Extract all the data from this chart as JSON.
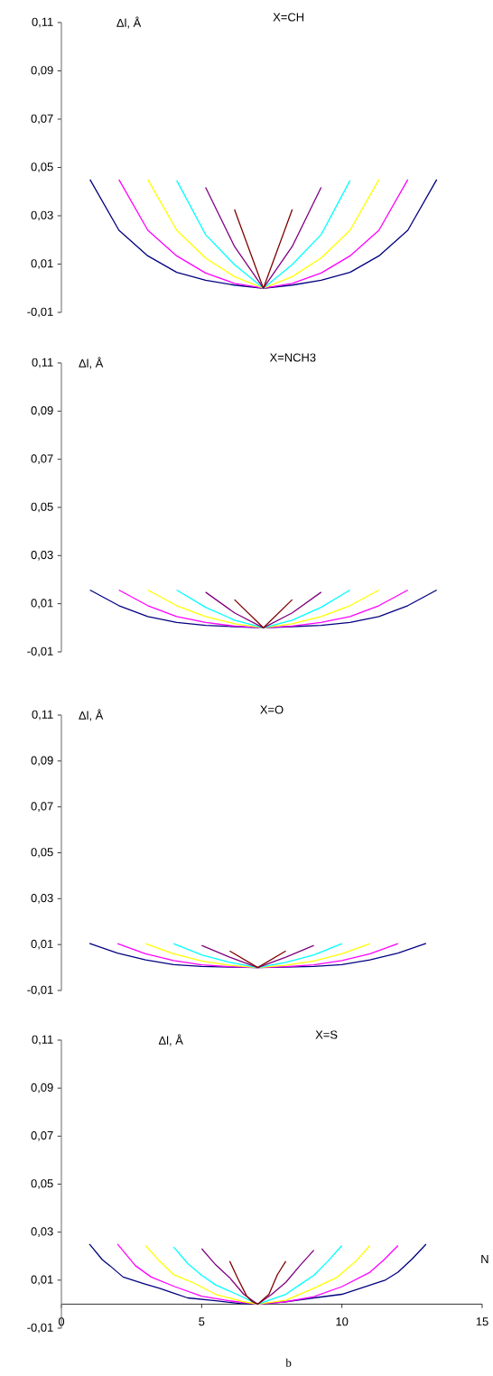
{
  "chart_data": [
    {
      "type": "line",
      "title": "X=CH",
      "ylabel": "Δl, Å",
      "marker": "none",
      "tick_labels": "y",
      "xlim": [
        0,
        15
      ],
      "ylim": [
        -0.01,
        0.11
      ],
      "yticks": [
        {
          "value": -0.01,
          "label": "-0,01"
        },
        {
          "value": 0.01,
          "label": "0,01"
        },
        {
          "value": 0.03,
          "label": "0,03"
        },
        {
          "value": 0.05,
          "label": "0,05"
        },
        {
          "value": 0.07,
          "label": "0,07"
        },
        {
          "value": 0.09,
          "label": "0,09"
        },
        {
          "value": 0.11,
          "label": "0,11"
        }
      ],
      "series": [
        {
          "color": "#000080",
          "x": [
            1.02,
            2.05,
            3.08,
            4.11,
            5.14,
            6.17,
            7.2,
            8.23,
            9.26,
            10.29,
            11.32,
            12.35,
            13.38
          ],
          "values": [
            0.045,
            0.024,
            0.0134,
            0.0066,
            0.0033,
            0.0013,
            0,
            0.0013,
            0.0033,
            0.0066,
            0.0134,
            0.024,
            0.045
          ]
        },
        {
          "color": "#ff00ff",
          "x": [
            2.05,
            3.08,
            4.11,
            5.14,
            6.17,
            7.2,
            8.23,
            9.26,
            10.29,
            11.32,
            12.35
          ],
          "values": [
            0.045,
            0.024,
            0.0134,
            0.0063,
            0.002,
            0,
            0.002,
            0.0063,
            0.0134,
            0.024,
            0.045
          ]
        },
        {
          "color": "#ffff00",
          "x": [
            3.08,
            4.11,
            5.14,
            6.17,
            7.2,
            8.23,
            9.26,
            10.29,
            11.32
          ],
          "values": [
            0.045,
            0.024,
            0.0125,
            0.0048,
            0,
            0.0048,
            0.0125,
            0.024,
            0.045
          ]
        },
        {
          "color": "#00ffff",
          "x": [
            4.11,
            5.14,
            6.17,
            7.2,
            8.23,
            9.26,
            10.29
          ],
          "values": [
            0.0446,
            0.0222,
            0.0098,
            0,
            0.0098,
            0.0222,
            0.0446
          ]
        },
        {
          "color": "#800080",
          "x": [
            5.14,
            6.17,
            7.2,
            8.23,
            9.26
          ],
          "values": [
            0.0418,
            0.0173,
            0,
            0.0173,
            0.0418
          ]
        },
        {
          "color": "#800000",
          "x": [
            6.17,
            7.2,
            8.23
          ],
          "values": [
            0.0326,
            0,
            0.0326
          ]
        }
      ]
    },
    {
      "type": "line",
      "title": "X=NCH3",
      "ylabel": "Δl, Å",
      "marker": "none",
      "tick_labels": "y",
      "xlim": [
        0,
        15
      ],
      "ylim": [
        -0.01,
        0.11
      ],
      "yticks": [
        {
          "value": -0.01,
          "label": "-0,01"
        },
        {
          "value": 0.01,
          "label": "0,01"
        },
        {
          "value": 0.03,
          "label": "0,03"
        },
        {
          "value": 0.05,
          "label": "0,05"
        },
        {
          "value": 0.07,
          "label": "0,07"
        },
        {
          "value": 0.09,
          "label": "0,09"
        },
        {
          "value": 0.11,
          "label": "0,11"
        }
      ],
      "series": [
        {
          "color": "#000080",
          "x": [
            1.02,
            2.05,
            3.08,
            4.11,
            5.14,
            6.17,
            7.2,
            8.23,
            9.26,
            10.29,
            11.32,
            12.35,
            13.38
          ],
          "values": [
            0.0157,
            0.0092,
            0.0047,
            0.0022,
            0.001,
            0.0005,
            0,
            0.0005,
            0.001,
            0.0022,
            0.0047,
            0.0092,
            0.0157
          ]
        },
        {
          "color": "#ff00ff",
          "x": [
            2.05,
            3.08,
            4.11,
            5.14,
            6.17,
            7.2,
            8.23,
            9.26,
            10.29,
            11.32,
            12.35
          ],
          "values": [
            0.0157,
            0.0092,
            0.0047,
            0.0022,
            0.0007,
            0,
            0.0007,
            0.0022,
            0.0047,
            0.0092,
            0.0157
          ]
        },
        {
          "color": "#ffff00",
          "x": [
            3.08,
            4.11,
            5.14,
            6.17,
            7.2,
            8.23,
            9.26,
            10.29,
            11.32
          ],
          "values": [
            0.0157,
            0.0092,
            0.0047,
            0.0017,
            0,
            0.0017,
            0.0047,
            0.0092,
            0.0157
          ]
        },
        {
          "color": "#00ffff",
          "x": [
            4.11,
            5.14,
            6.17,
            7.2,
            8.23,
            9.26,
            10.29
          ],
          "values": [
            0.0157,
            0.0085,
            0.0032,
            0,
            0.0032,
            0.0085,
            0.0157
          ]
        },
        {
          "color": "#800080",
          "x": [
            5.14,
            6.17,
            7.2,
            8.23,
            9.26
          ],
          "values": [
            0.0148,
            0.0062,
            0,
            0.0062,
            0.0148
          ]
        },
        {
          "color": "#800000",
          "x": [
            6.17,
            7.2,
            8.23
          ],
          "values": [
            0.0117,
            0,
            0.0117
          ]
        }
      ]
    },
    {
      "type": "line",
      "title": "X=O",
      "ylabel": "Δl, Å",
      "marker": "none",
      "tick_labels": "y",
      "xlim": [
        0,
        15
      ],
      "ylim": [
        -0.01,
        0.11
      ],
      "yticks": [
        {
          "value": -0.01,
          "label": "-0,01"
        },
        {
          "value": 0.01,
          "label": "0,01"
        },
        {
          "value": 0.03,
          "label": "0,03"
        },
        {
          "value": 0.05,
          "label": "0,05"
        },
        {
          "value": 0.07,
          "label": "0,07"
        },
        {
          "value": 0.09,
          "label": "0,09"
        },
        {
          "value": 0.11,
          "label": "0,11"
        }
      ],
      "series": [
        {
          "color": "#000080",
          "x": [
            1,
            2,
            3,
            4,
            5,
            6,
            7,
            8,
            9,
            10,
            11,
            12,
            13
          ],
          "values": [
            0.0105,
            0.0063,
            0.0033,
            0.0013,
            0.0005,
            0.0002,
            0,
            0.0002,
            0.0005,
            0.0013,
            0.0033,
            0.0063,
            0.0105
          ]
        },
        {
          "color": "#ff00ff",
          "x": [
            2,
            3,
            4,
            5,
            6,
            7,
            8,
            9,
            10,
            11,
            12
          ],
          "values": [
            0.0104,
            0.006,
            0.003,
            0.0012,
            0.0004,
            0,
            0.0004,
            0.0012,
            0.003,
            0.006,
            0.0104
          ]
        },
        {
          "color": "#ffff00",
          "x": [
            3,
            4,
            5,
            6,
            7,
            8,
            9,
            10,
            11
          ],
          "values": [
            0.0104,
            0.006,
            0.0028,
            0.001,
            0,
            0.001,
            0.0028,
            0.006,
            0.0104
          ]
        },
        {
          "color": "#00ffff",
          "x": [
            4,
            5,
            6,
            7,
            8,
            9,
            10
          ],
          "values": [
            0.0104,
            0.0055,
            0.0022,
            0,
            0.0022,
            0.0055,
            0.0104
          ]
        },
        {
          "color": "#800080",
          "x": [
            5,
            6,
            7,
            8,
            9
          ],
          "values": [
            0.0096,
            0.0045,
            0,
            0.0045,
            0.0096
          ]
        },
        {
          "color": "#800000",
          "x": [
            6,
            7,
            8
          ],
          "values": [
            0.0072,
            0,
            0.0072
          ]
        }
      ]
    },
    {
      "type": "line",
      "title": "X=S",
      "ylabel": "Δl, Å",
      "xlabel": "N",
      "annotations": [
        "b"
      ],
      "marker": "none",
      "xlim": [
        0,
        15
      ],
      "ylim": [
        -0.01,
        0.11
      ],
      "xticks": [
        0,
        5,
        10,
        15
      ],
      "yticks": [
        {
          "value": -0.01,
          "label": "-0,01"
        },
        {
          "value": 0.01,
          "label": "0,01"
        },
        {
          "value": 0.03,
          "label": "0,03"
        },
        {
          "value": 0.05,
          "label": "0,05"
        },
        {
          "value": 0.07,
          "label": "0,07"
        },
        {
          "value": 0.09,
          "label": "0,09"
        },
        {
          "value": 0.11,
          "label": "0,11"
        }
      ],
      "series": [
        {
          "color": "#000080",
          "x": [
            1.0,
            1.46,
            1.73,
            2.2,
            2.95,
            3.5,
            4.04,
            4.5,
            5.5,
            6.36,
            7.0,
            8.0,
            9.0,
            10.0,
            11.0,
            11.56,
            12.0,
            12.5,
            13.0
          ],
          "values": [
            0.025,
            0.0185,
            0.016,
            0.0113,
            0.0085,
            0.0066,
            0.0044,
            0.0026,
            0.0014,
            0.0003,
            0,
            0.001,
            0.0026,
            0.0041,
            0.0079,
            0.0101,
            0.0133,
            0.0188,
            0.025
          ]
        },
        {
          "color": "#ff00ff",
          "x": [
            2.0,
            2.64,
            3.2,
            4.04,
            5.0,
            5.97,
            7.0,
            8.0,
            9.0,
            10.0,
            11.0,
            11.5,
            12.0
          ],
          "values": [
            0.025,
            0.016,
            0.0113,
            0.0073,
            0.0033,
            0.0014,
            0,
            0.001,
            0.0031,
            0.0073,
            0.0133,
            0.0185,
            0.0244
          ]
        },
        {
          "color": "#ffff00",
          "x": [
            3.0,
            3.5,
            4.0,
            4.7,
            5.5,
            6.5,
            7.0,
            8.0,
            9.0,
            9.8,
            10.5,
            11.0
          ],
          "values": [
            0.0244,
            0.0179,
            0.0123,
            0.0089,
            0.0041,
            0.001,
            0,
            0.0016,
            0.0066,
            0.011,
            0.0179,
            0.0244
          ]
        },
        {
          "color": "#00ffff",
          "x": [
            4.0,
            4.5,
            5.0,
            5.5,
            6.2,
            7.0,
            8.0,
            8.5,
            9.0,
            9.5,
            10.0
          ],
          "values": [
            0.0238,
            0.017,
            0.012,
            0.008,
            0.0044,
            0,
            0.0041,
            0.0081,
            0.012,
            0.0179,
            0.0244
          ]
        },
        {
          "color": "#800080",
          "x": [
            5.0,
            5.5,
            6.0,
            6.5,
            7.0,
            7.5,
            8.0,
            8.5,
            9.0
          ],
          "values": [
            0.0231,
            0.0164,
            0.011,
            0.0041,
            0,
            0.0041,
            0.0091,
            0.016,
            0.0225
          ]
        },
        {
          "color": "#800000",
          "x": [
            6.0,
            6.3,
            6.6,
            6.8,
            7.0,
            7.4,
            7.7,
            8.0
          ],
          "values": [
            0.0179,
            0.0104,
            0.0035,
            0.001,
            0,
            0.0041,
            0.0123,
            0.0179
          ]
        }
      ]
    }
  ]
}
